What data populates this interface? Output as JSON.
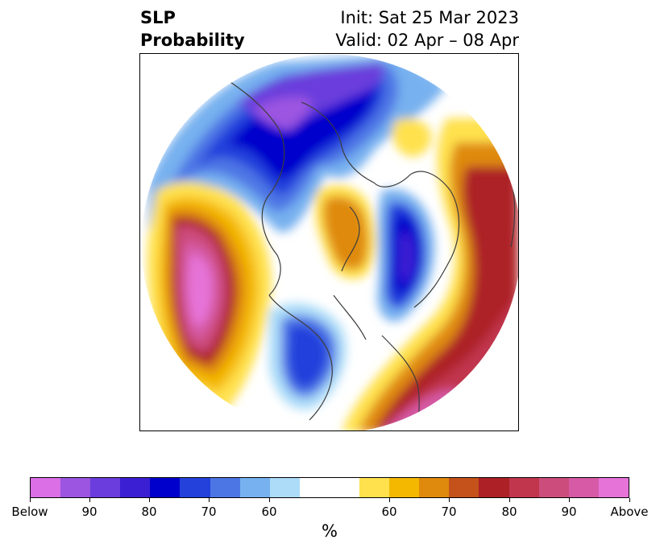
{
  "title": {
    "left_line1": "SLP",
    "left_line2": "Probability",
    "right_line1": "Init: Sat 25 Mar 2023",
    "right_line2": "Valid: 02 Apr – 08 Apr"
  },
  "colorbar": {
    "colors": [
      "#da6fe6",
      "#9b55e1",
      "#6b3ddc",
      "#3b1fd3",
      "#0000cc",
      "#2441db",
      "#4d76e5",
      "#77b1ef",
      "#acdcf8",
      "#ffffff",
      "#ffe14d",
      "#f4b800",
      "#df8a0c",
      "#c4521a",
      "#ad2025",
      "#c1364d",
      "#cc4c7b",
      "#d65aa6",
      "#e673d8"
    ],
    "labels": [
      "Below",
      "90",
      "80",
      "70",
      "60",
      "60",
      "70",
      "80",
      "90",
      "Above"
    ],
    "unit": "%"
  },
  "map": {
    "background": "#ffffff",
    "coastline_color": "#3c3c3c"
  }
}
